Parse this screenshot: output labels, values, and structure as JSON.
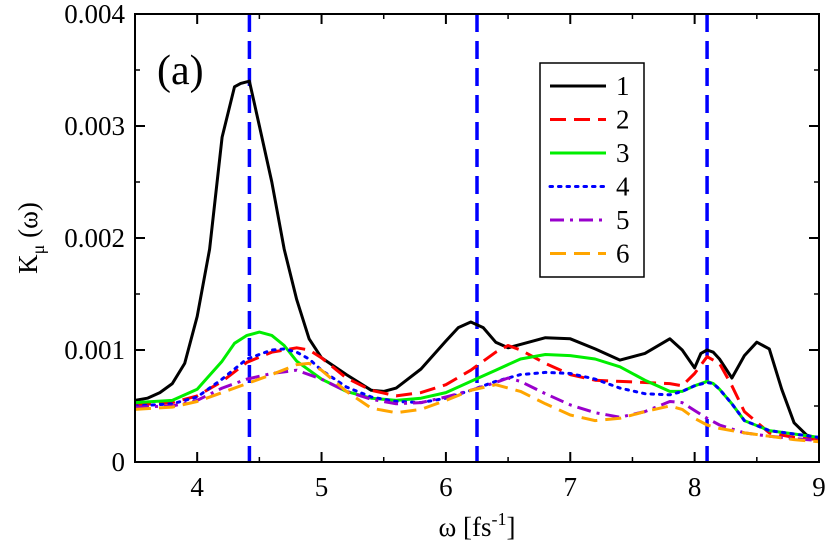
{
  "chart_data": {
    "type": "line",
    "panel_label": "(a)",
    "xlabel": "ω [fs",
    "xlabel_sup": "-1",
    "xlabel_end": "]",
    "ylabel": "K",
    "ylabel_sub": "μ",
    "ylabel_end": " (ω)",
    "xlim": [
      3.5,
      9
    ],
    "ylim": [
      0,
      0.004
    ],
    "xticks": [
      4,
      5,
      6,
      7,
      8,
      9
    ],
    "xtick_labels": [
      "4",
      "5",
      "6",
      "7",
      "8",
      "9"
    ],
    "yticks": [
      0,
      0.001,
      0.002,
      0.003,
      0.004
    ],
    "ytick_labels": [
      "0",
      "0.001",
      "0.002",
      "0.003",
      "0.004"
    ],
    "vlines": [
      4.42,
      6.25,
      8.1
    ],
    "vline_color": "#0000ff",
    "legend_position": "top-right",
    "series": [
      {
        "name": "1",
        "color": "#000000",
        "dash": "solid",
        "x": [
          3.5,
          3.6,
          3.7,
          3.8,
          3.9,
          4.0,
          4.1,
          4.2,
          4.3,
          4.35,
          4.42,
          4.5,
          4.6,
          4.7,
          4.8,
          4.9,
          5.0,
          5.2,
          5.4,
          5.5,
          5.6,
          5.8,
          6.0,
          6.1,
          6.2,
          6.3,
          6.4,
          6.5,
          6.6,
          6.8,
          7.0,
          7.2,
          7.4,
          7.6,
          7.8,
          7.9,
          8.0,
          8.05,
          8.1,
          8.15,
          8.2,
          8.3,
          8.4,
          8.5,
          8.6,
          8.7,
          8.8,
          8.9,
          9.0
        ],
        "y": [
          0.00055,
          0.00057,
          0.00062,
          0.0007,
          0.00088,
          0.0013,
          0.0019,
          0.0029,
          0.00335,
          0.00338,
          0.0034,
          0.003,
          0.0025,
          0.0019,
          0.00145,
          0.0011,
          0.00093,
          0.00078,
          0.00064,
          0.00063,
          0.00066,
          0.00083,
          0.00108,
          0.0012,
          0.00125,
          0.0012,
          0.00107,
          0.00102,
          0.00105,
          0.00111,
          0.0011,
          0.00101,
          0.00091,
          0.00097,
          0.0011,
          0.001,
          0.00084,
          0.00097,
          0.001,
          0.00098,
          0.00092,
          0.00075,
          0.00095,
          0.00107,
          0.00101,
          0.00065,
          0.00035,
          0.00024,
          0.00021
        ]
      },
      {
        "name": "2",
        "color": "#ff0000",
        "dash": "long",
        "x": [
          3.5,
          3.8,
          4.0,
          4.2,
          4.4,
          4.6,
          4.8,
          4.9,
          5.0,
          5.2,
          5.4,
          5.6,
          5.8,
          6.0,
          6.2,
          6.4,
          6.5,
          6.6,
          6.8,
          7.0,
          7.2,
          7.4,
          7.6,
          7.8,
          7.9,
          8.0,
          8.1,
          8.2,
          8.3,
          8.4,
          8.6,
          8.8,
          9.0
        ],
        "y": [
          0.00051,
          0.00053,
          0.00059,
          0.00072,
          0.00089,
          0.00098,
          0.00102,
          0.001,
          0.00093,
          0.00075,
          0.00064,
          0.00059,
          0.00062,
          0.00069,
          0.00082,
          0.00098,
          0.00104,
          0.001,
          0.00088,
          0.00078,
          0.00073,
          0.00072,
          0.00071,
          0.0007,
          0.00068,
          0.00079,
          0.00094,
          0.00088,
          0.00068,
          0.00045,
          0.00026,
          0.00022,
          0.0002
        ]
      },
      {
        "name": "3",
        "color": "#00ee00",
        "dash": "solid",
        "x": [
          3.5,
          3.8,
          4.0,
          4.2,
          4.3,
          4.4,
          4.5,
          4.6,
          4.7,
          4.8,
          5.0,
          5.2,
          5.4,
          5.6,
          5.8,
          6.0,
          6.2,
          6.4,
          6.6,
          6.8,
          7.0,
          7.2,
          7.4,
          7.6,
          7.8,
          7.9,
          8.0,
          8.1,
          8.15,
          8.2,
          8.3,
          8.4,
          8.6,
          8.8,
          9.0
        ],
        "y": [
          0.00053,
          0.00055,
          0.00065,
          0.0009,
          0.00106,
          0.00113,
          0.00116,
          0.00113,
          0.00104,
          0.0009,
          0.00074,
          0.00063,
          0.00057,
          0.00055,
          0.00057,
          0.00062,
          0.00072,
          0.00082,
          0.00092,
          0.00096,
          0.00095,
          0.00092,
          0.00085,
          0.00073,
          0.00063,
          0.00063,
          0.00068,
          0.00072,
          0.0007,
          0.00065,
          0.00052,
          0.00037,
          0.00028,
          0.00025,
          0.00022
        ]
      },
      {
        "name": "4",
        "color": "#0000ff",
        "dash": "dotted",
        "x": [
          3.5,
          3.8,
          4.0,
          4.2,
          4.4,
          4.6,
          4.7,
          4.8,
          4.9,
          5.0,
          5.2,
          5.4,
          5.6,
          5.8,
          6.0,
          6.2,
          6.4,
          6.6,
          6.8,
          7.0,
          7.2,
          7.4,
          7.6,
          7.8,
          7.9,
          8.0,
          8.1,
          8.15,
          8.2,
          8.3,
          8.4,
          8.6,
          8.8,
          9.0
        ],
        "y": [
          0.0005,
          0.00052,
          0.00058,
          0.00074,
          0.00092,
          0.001,
          0.00101,
          0.00098,
          0.00092,
          0.00082,
          0.00067,
          0.00058,
          0.00054,
          0.00053,
          0.00057,
          0.00064,
          0.00072,
          0.00078,
          0.0008,
          0.00079,
          0.00074,
          0.00066,
          0.00061,
          0.0006,
          0.00063,
          0.00068,
          0.00071,
          0.0007,
          0.00065,
          0.00052,
          0.00037,
          0.00028,
          0.00025,
          0.00022
        ]
      },
      {
        "name": "5",
        "color": "#9900cc",
        "dash": "dashdot",
        "x": [
          3.5,
          3.8,
          4.0,
          4.2,
          4.4,
          4.6,
          4.8,
          5.0,
          5.2,
          5.4,
          5.6,
          5.8,
          6.0,
          6.2,
          6.4,
          6.5,
          6.6,
          6.8,
          7.0,
          7.2,
          7.4,
          7.6,
          7.8,
          7.9,
          8.0,
          8.1,
          8.2,
          8.4,
          8.6,
          8.8,
          9.0
        ],
        "y": [
          0.00049,
          0.0005,
          0.00055,
          0.00066,
          0.00074,
          0.00079,
          0.00082,
          0.00074,
          0.00063,
          0.00056,
          0.00052,
          0.00053,
          0.00058,
          0.00064,
          0.00071,
          0.00075,
          0.00072,
          0.00061,
          0.00051,
          0.00044,
          0.0004,
          0.00045,
          0.00054,
          0.00053,
          0.00046,
          0.00039,
          0.00033,
          0.00026,
          0.00023,
          0.00021,
          0.00019
        ]
      },
      {
        "name": "6",
        "color": "#ffa500",
        "dash": "long",
        "x": [
          3.5,
          3.8,
          4.0,
          4.2,
          4.4,
          4.6,
          4.8,
          4.9,
          5.0,
          5.2,
          5.4,
          5.6,
          5.8,
          6.0,
          6.2,
          6.4,
          6.6,
          6.8,
          7.0,
          7.2,
          7.4,
          7.6,
          7.8,
          7.9,
          8.0,
          8.1,
          8.2,
          8.4,
          8.6,
          8.8,
          9.0
        ],
        "y": [
          0.00047,
          0.00049,
          0.00054,
          0.00062,
          0.0007,
          0.00078,
          0.00087,
          0.00088,
          0.00082,
          0.00063,
          0.00048,
          0.00044,
          0.00047,
          0.00055,
          0.00064,
          0.00069,
          0.00063,
          0.00052,
          0.00042,
          0.00037,
          0.00039,
          0.00045,
          0.0005,
          0.00047,
          0.00039,
          0.00033,
          0.0003,
          0.00026,
          0.00023,
          0.0002,
          0.00018
        ]
      }
    ]
  }
}
